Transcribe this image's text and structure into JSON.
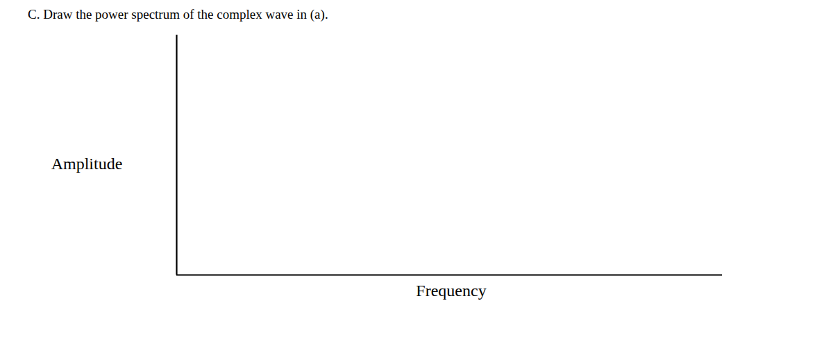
{
  "chart_data": {
    "type": "line",
    "title": "C.  Draw the power spectrum of the complex wave in (a).",
    "xlabel": "Frequency",
    "ylabel": "Amplitude",
    "xlim": [
      0,
      1
    ],
    "ylim": [
      0,
      1
    ],
    "tick_labels": false,
    "grid": false,
    "series": []
  }
}
